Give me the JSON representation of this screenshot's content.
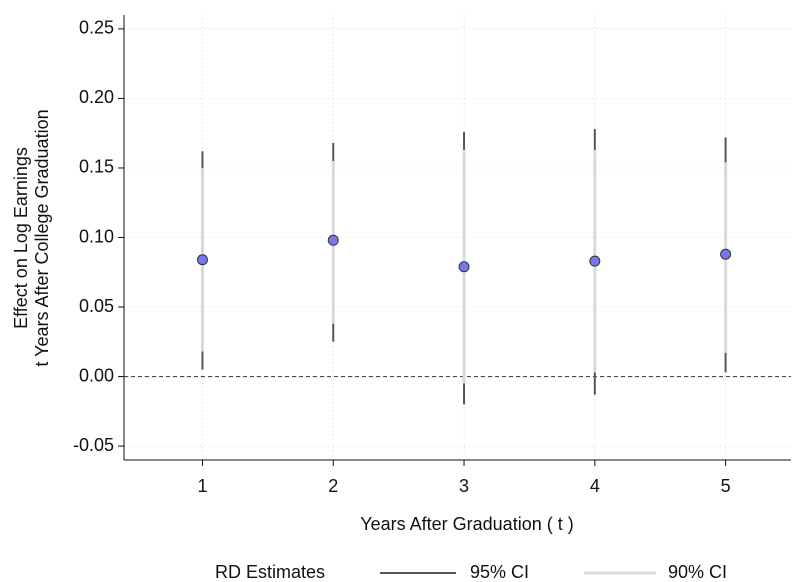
{
  "chart_data": {
    "type": "scatter",
    "xlabel": "Years After Graduation ( t )",
    "ylabel": [
      "Effect on Log Earnings",
      "t  Years After College Graduation"
    ],
    "x": [
      1,
      2,
      3,
      4,
      5
    ],
    "series": [
      {
        "name": "RD Estimates",
        "color": "#7777ee",
        "values": [
          0.084,
          0.098,
          0.079,
          0.083,
          0.088
        ]
      },
      {
        "name": "95% CI",
        "color": "#555555",
        "lower": [
          0.005,
          0.025,
          -0.02,
          -0.013,
          0.003
        ],
        "upper": [
          0.162,
          0.168,
          0.176,
          0.178,
          0.172
        ]
      },
      {
        "name": "90% CI",
        "color": "#d9d9d9",
        "lower": [
          0.018,
          0.038,
          -0.005,
          0.003,
          0.017
        ],
        "upper": [
          0.15,
          0.155,
          0.163,
          0.163,
          0.154
        ]
      }
    ],
    "xlim": [
      0.4,
      5.5
    ],
    "ylim": [
      -0.06,
      0.26
    ],
    "xticks": [
      1,
      2,
      3,
      4,
      5
    ],
    "yticks": [
      {
        "value": -0.05,
        "label": "-0.05"
      },
      {
        "value": 0,
        "label": "0.00"
      },
      {
        "value": 0.05,
        "label": "0.05"
      },
      {
        "value": 0.1,
        "label": "0.10"
      },
      {
        "value": 0.15,
        "label": "0.15"
      },
      {
        "value": 0.2,
        "label": "0.20"
      },
      {
        "value": 0.25,
        "label": "0.25"
      }
    ],
    "reference_line": 0,
    "grid": true
  }
}
